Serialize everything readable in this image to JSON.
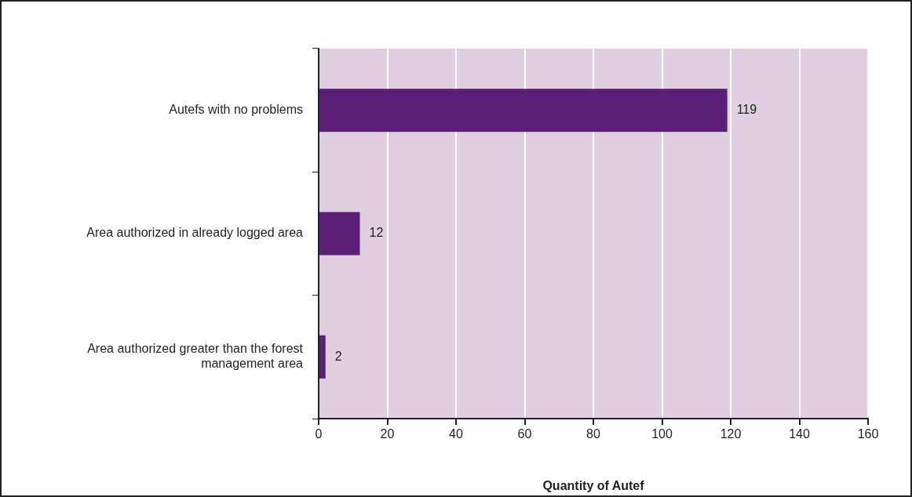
{
  "chart_data": {
    "type": "bar",
    "orientation": "horizontal",
    "xlabel": "Quantity of Autef",
    "categories": [
      "Autefs with no problems",
      "Area authorized in already logged area",
      "Area authorized greater than the forest management area"
    ],
    "values": [
      119,
      12,
      2
    ],
    "color": "#5c1f78",
    "data_labels": true,
    "xlim": [
      0,
      160
    ],
    "xticks": [
      0,
      20,
      40,
      60,
      80,
      100,
      120,
      140,
      160
    ],
    "grid": "x"
  }
}
